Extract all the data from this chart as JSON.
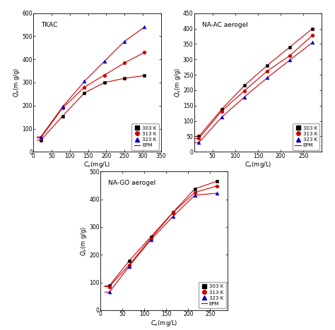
{
  "plots": [
    {
      "title": "TKAC",
      "xlim": [
        0,
        340
      ],
      "ylim": [
        0,
        600
      ],
      "xticks": [
        0,
        50,
        100,
        150,
        200,
        250,
        300,
        350
      ],
      "yticks": [
        0,
        100,
        200,
        300,
        400,
        500,
        600
      ],
      "series": [
        {
          "label": "303 K",
          "color": "#000000",
          "marker": "s",
          "x": [
            20,
            80,
            140,
            195,
            250,
            305
          ],
          "y": [
            50,
            155,
            255,
            300,
            318,
            330
          ]
        },
        {
          "label": "313 K",
          "color": "#cc0000",
          "marker": "o",
          "x": [
            20,
            80,
            140,
            195,
            250,
            305
          ],
          "y": [
            60,
            190,
            280,
            332,
            385,
            430
          ]
        },
        {
          "label": "323 K",
          "color": "#0000cc",
          "marker": "^",
          "x": [
            20,
            80,
            140,
            195,
            250,
            305
          ],
          "y": [
            65,
            195,
            305,
            392,
            478,
            540
          ]
        }
      ]
    },
    {
      "title": "NA-AC aerogel",
      "xlim": [
        10,
        290
      ],
      "ylim": [
        0,
        450
      ],
      "xticks": [
        50,
        100,
        150,
        200,
        250
      ],
      "yticks": [
        0,
        50,
        100,
        150,
        200,
        250,
        300,
        350,
        400,
        450
      ],
      "series": [
        {
          "label": "303 K",
          "color": "#000000",
          "marker": "s",
          "x": [
            20,
            70,
            120,
            170,
            220,
            270
          ],
          "y": [
            50,
            138,
            215,
            280,
            340,
            400
          ]
        },
        {
          "label": "313 K",
          "color": "#cc0000",
          "marker": "o",
          "x": [
            20,
            70,
            120,
            170,
            220,
            270
          ],
          "y": [
            43,
            132,
            198,
            262,
            312,
            378
          ]
        },
        {
          "label": "323 K",
          "color": "#0000cc",
          "marker": "^",
          "x": [
            20,
            70,
            120,
            170,
            220,
            270
          ],
          "y": [
            30,
            112,
            178,
            240,
            298,
            355
          ]
        }
      ]
    },
    {
      "title": "NA-GO aerogel",
      "xlim": [
        0,
        290
      ],
      "ylim": [
        0,
        500
      ],
      "xticks": [
        0,
        50,
        100,
        150,
        200,
        250
      ],
      "yticks": [
        0,
        100,
        200,
        300,
        400,
        500
      ],
      "series": [
        {
          "label": "303 K",
          "color": "#000000",
          "marker": "s",
          "x": [
            20,
            65,
            115,
            165,
            215,
            265
          ],
          "y": [
            88,
            178,
            265,
            353,
            438,
            465
          ]
        },
        {
          "label": "313 K",
          "color": "#cc0000",
          "marker": "o",
          "x": [
            20,
            65,
            115,
            165,
            215,
            265
          ],
          "y": [
            85,
            163,
            260,
            352,
            425,
            448
          ]
        },
        {
          "label": "323 K",
          "color": "#0000cc",
          "marker": "^",
          "x": [
            20,
            65,
            115,
            165,
            215,
            265
          ],
          "y": [
            65,
            158,
            255,
            338,
            415,
            422
          ]
        }
      ]
    }
  ],
  "epm_color": "#cc0000",
  "bg_color": "#ffffff",
  "figsize": [
    4.74,
    4.68
  ],
  "dpi": 100
}
